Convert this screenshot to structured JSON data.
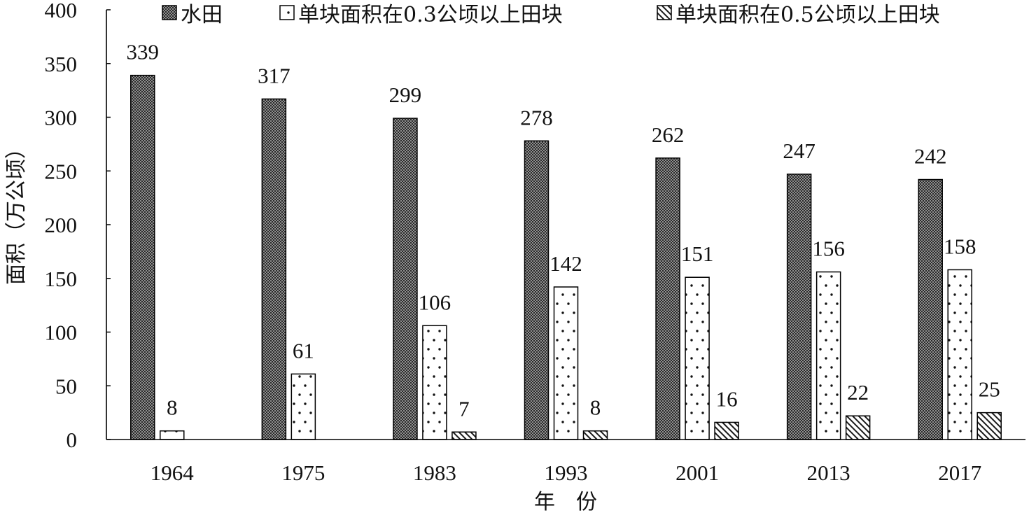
{
  "chart_data": {
    "type": "bar",
    "xlabel": "年　份",
    "ylabel": "面积（万公顷）",
    "categories": [
      "1964",
      "1975",
      "1983",
      "1993",
      "2001",
      "2013",
      "2017"
    ],
    "ylim": [
      0,
      400
    ],
    "yticks": [
      0,
      50,
      100,
      150,
      200,
      250,
      300,
      350,
      400
    ],
    "grid": false,
    "legend": "top",
    "data_labels": true,
    "series": [
      {
        "name": "水田",
        "values": [
          339,
          317,
          299,
          278,
          262,
          247,
          242
        ],
        "pattern": "dense-checker"
      },
      {
        "name": "单块面积在0.3公顷以上田块",
        "values": [
          8,
          61,
          106,
          142,
          151,
          156,
          158
        ],
        "pattern": "sparse-dots"
      },
      {
        "name": "单块面积在0.5公顷以上田块",
        "values": [
          null,
          null,
          7,
          8,
          16,
          22,
          25
        ],
        "pattern": "diagonal-hatch"
      }
    ]
  }
}
